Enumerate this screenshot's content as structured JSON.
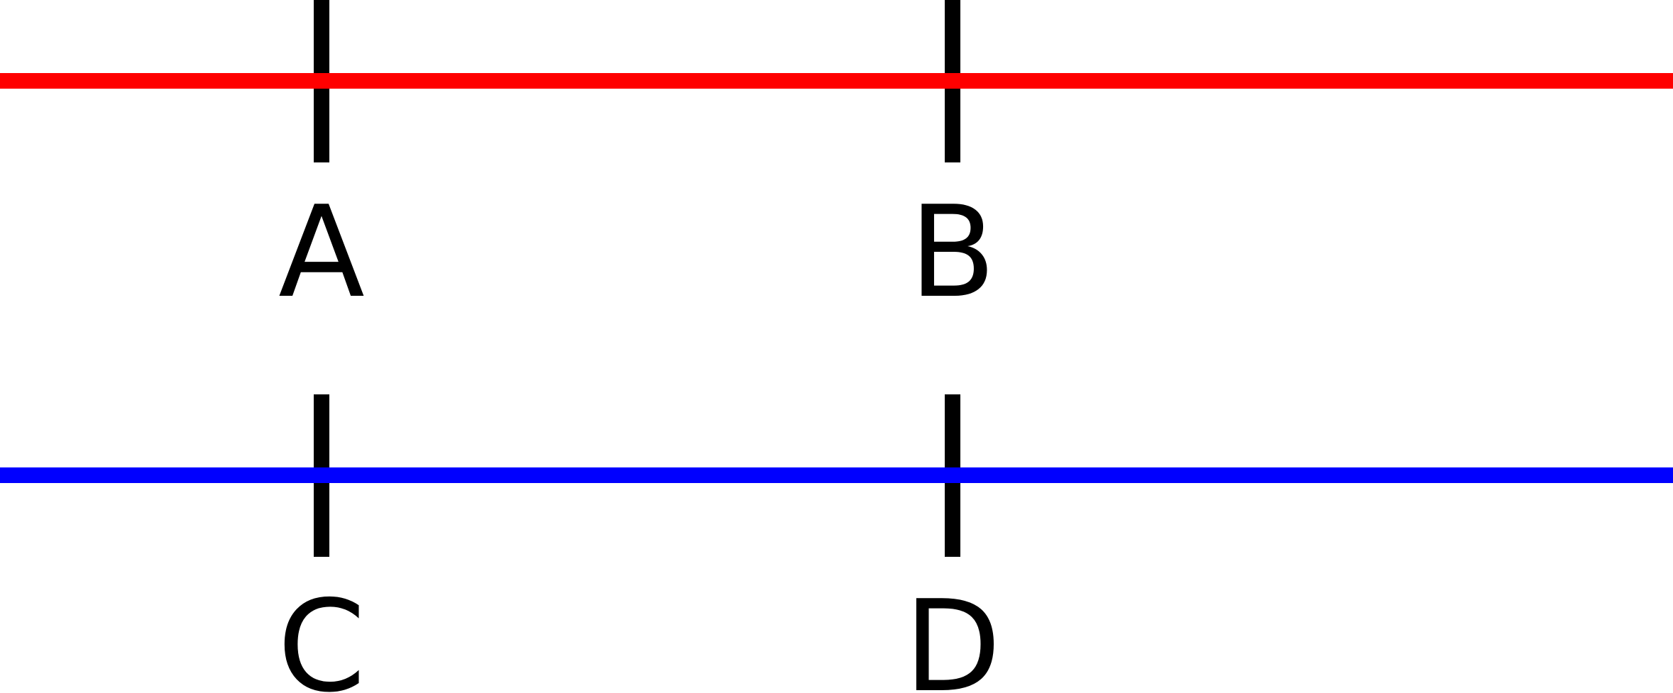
{
  "diagram": {
    "lines": [
      {
        "name": "red-line",
        "color": "#ff0000"
      },
      {
        "name": "blue-line",
        "color": "#0000ff"
      }
    ],
    "tick_color": "#000000",
    "labels": {
      "a": "A",
      "b": "B",
      "c": "C",
      "d": "D"
    }
  }
}
